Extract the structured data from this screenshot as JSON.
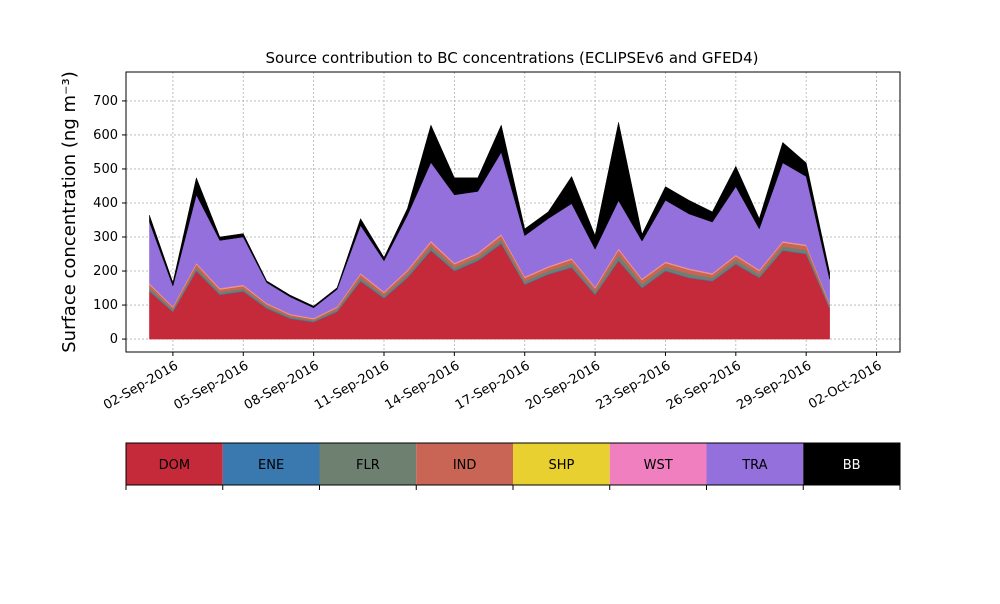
{
  "chart_data": {
    "type": "area",
    "stacked": true,
    "title": "Source contribution to BC concentrations (ECLIPSEv6 and GFED4)",
    "ylabel": "Surface concentration (ng m⁻³)",
    "x": [
      "01-Sep-2016",
      "02-Sep-2016",
      "03-Sep-2016",
      "04-Sep-2016",
      "05-Sep-2016",
      "06-Sep-2016",
      "07-Sep-2016",
      "08-Sep-2016",
      "09-Sep-2016",
      "10-Sep-2016",
      "11-Sep-2016",
      "12-Sep-2016",
      "13-Sep-2016",
      "14-Sep-2016",
      "15-Sep-2016",
      "16-Sep-2016",
      "17-Sep-2016",
      "18-Sep-2016",
      "19-Sep-2016",
      "20-Sep-2016",
      "21-Sep-2016",
      "22-Sep-2016",
      "23-Sep-2016",
      "24-Sep-2016",
      "25-Sep-2016",
      "26-Sep-2016",
      "27-Sep-2016",
      "28-Sep-2016",
      "29-Sep-2016",
      "30-Sep-2016"
    ],
    "xlim": [
      "31-Aug-2016",
      "03-Oct-2016"
    ],
    "xticks": [
      "02-Sep-2016",
      "05-Sep-2016",
      "08-Sep-2016",
      "11-Sep-2016",
      "14-Sep-2016",
      "17-Sep-2016",
      "20-Sep-2016",
      "23-Sep-2016",
      "26-Sep-2016",
      "29-Sep-2016",
      "02-Oct-2016"
    ],
    "ylim": [
      -38,
      785
    ],
    "yticks": [
      0,
      100,
      200,
      300,
      400,
      500,
      600,
      700
    ],
    "grid": true,
    "series": [
      {
        "name": "DOM",
        "color": "#c52a3a",
        "values": [
          140,
          80,
          200,
          130,
          140,
          90,
          60,
          50,
          80,
          170,
          120,
          180,
          260,
          200,
          230,
          280,
          160,
          190,
          210,
          130,
          230,
          150,
          200,
          180,
          170,
          220,
          180,
          260,
          250,
          90
        ]
      },
      {
        "name": "ENE",
        "color": "#3a78b0",
        "values": [
          2,
          2,
          2,
          2,
          2,
          2,
          2,
          2,
          2,
          2,
          2,
          2,
          2,
          2,
          2,
          2,
          2,
          2,
          2,
          2,
          2,
          2,
          2,
          2,
          2,
          2,
          2,
          2,
          2,
          2
        ]
      },
      {
        "name": "FLR",
        "color": "#6e8070",
        "values": [
          8,
          5,
          8,
          6,
          6,
          5,
          4,
          3,
          5,
          8,
          6,
          8,
          10,
          8,
          8,
          10,
          8,
          8,
          10,
          8,
          15,
          10,
          10,
          10,
          8,
          10,
          8,
          10,
          10,
          5
        ]
      },
      {
        "name": "IND",
        "color": "#c96555",
        "values": [
          10,
          6,
          10,
          8,
          8,
          6,
          5,
          4,
          6,
          10,
          8,
          10,
          12,
          10,
          10,
          12,
          10,
          10,
          12,
          10,
          15,
          12,
          12,
          12,
          10,
          12,
          10,
          12,
          12,
          6
        ]
      },
      {
        "name": "SHP",
        "color": "#e8d030",
        "values": [
          1,
          1,
          1,
          1,
          1,
          1,
          1,
          1,
          1,
          1,
          1,
          1,
          1,
          1,
          1,
          1,
          1,
          1,
          1,
          1,
          1,
          1,
          1,
          1,
          1,
          1,
          1,
          1,
          1,
          1
        ]
      },
      {
        "name": "WST",
        "color": "#f07fbf",
        "values": [
          3,
          2,
          3,
          3,
          3,
          2,
          2,
          2,
          2,
          3,
          3,
          3,
          4,
          3,
          3,
          4,
          3,
          3,
          3,
          3,
          4,
          3,
          3,
          3,
          3,
          3,
          3,
          3,
          3,
          2
        ]
      },
      {
        "name": "TRA",
        "color": "#9370db",
        "values": [
          180,
          60,
          200,
          140,
          140,
          60,
          50,
          30,
          50,
          140,
          90,
          160,
          230,
          200,
          180,
          240,
          120,
          140,
          160,
          110,
          140,
          110,
          180,
          160,
          150,
          200,
          120,
          230,
          200,
          70
        ]
      },
      {
        "name": "BB",
        "color": "#000000",
        "values": [
          20,
          10,
          50,
          10,
          10,
          5,
          5,
          5,
          5,
          20,
          10,
          20,
          110,
          50,
          40,
          80,
          20,
          20,
          80,
          40,
          230,
          20,
          40,
          40,
          30,
          60,
          30,
          60,
          40,
          20
        ]
      }
    ]
  }
}
